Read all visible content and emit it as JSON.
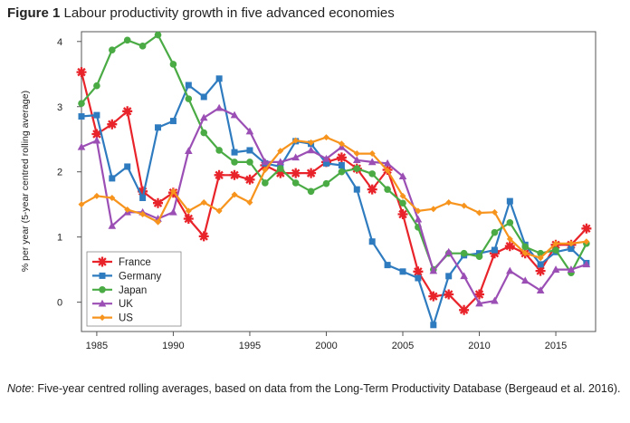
{
  "figure": {
    "label": "Figure 1",
    "title": "Labour productivity growth in five advanced economies",
    "note_label": "Note",
    "note_text": ": Five-year centred rolling averages, based on data from the Long-Term Productivity Database (Bergeaud et al. 2016)."
  },
  "chart_data": {
    "type": "line",
    "title": "",
    "xlabel": "",
    "ylabel": "% per year (5-year centred rolling average)",
    "xlim": [
      1984,
      2017.6
    ],
    "ylim": [
      -0.45,
      4.15
    ],
    "xticks": [
      1985,
      1990,
      1995,
      2000,
      2005,
      2010,
      2015
    ],
    "yticks": [
      0,
      1,
      2,
      3,
      4
    ],
    "grid": false,
    "legend_position": "bottom-left",
    "x": [
      1984,
      1985,
      1986,
      1987,
      1988,
      1989,
      1990,
      1991,
      1992,
      1993,
      1994,
      1995,
      1996,
      1997,
      1998,
      1999,
      2000,
      2001,
      2002,
      2003,
      2004,
      2005,
      2006,
      2007,
      2008,
      2009,
      2010,
      2011,
      2012,
      2013,
      2014,
      2015,
      2016,
      2017
    ],
    "series": [
      {
        "name": "France",
        "color": "#e8232a",
        "marker": "asterisk",
        "values": [
          3.53,
          2.58,
          2.73,
          2.93,
          1.7,
          1.52,
          1.68,
          1.28,
          1.01,
          1.95,
          1.95,
          1.88,
          2.1,
          1.98,
          1.98,
          1.98,
          2.15,
          2.22,
          2.05,
          1.73,
          2.03,
          1.35,
          0.47,
          0.09,
          0.12,
          -0.12,
          0.12,
          0.75,
          0.86,
          0.75,
          0.48,
          0.88,
          0.88,
          1.13
        ]
      },
      {
        "name": "Germany",
        "color": "#2f7bbf",
        "marker": "square",
        "values": [
          2.85,
          2.87,
          1.9,
          2.08,
          1.6,
          2.68,
          2.78,
          3.33,
          3.15,
          3.43,
          2.3,
          2.33,
          2.13,
          2.08,
          2.47,
          2.43,
          2.13,
          2.1,
          1.73,
          0.93,
          0.57,
          0.47,
          0.37,
          -0.35,
          0.4,
          0.72,
          0.75,
          0.8,
          1.55,
          0.88,
          0.58,
          0.77,
          0.82,
          0.6
        ]
      },
      {
        "name": "Japan",
        "color": "#4aab45",
        "marker": "circle",
        "values": [
          3.05,
          3.32,
          3.87,
          4.02,
          3.93,
          4.1,
          3.65,
          3.12,
          2.6,
          2.33,
          2.15,
          2.15,
          1.83,
          2.05,
          1.83,
          1.7,
          1.82,
          2.0,
          2.05,
          1.97,
          1.73,
          1.52,
          1.15,
          0.5,
          0.75,
          0.75,
          0.7,
          1.07,
          1.22,
          0.85,
          0.75,
          0.8,
          0.45,
          0.9
        ]
      },
      {
        "name": "UK",
        "color": "#9b4fb5",
        "marker": "triangle",
        "values": [
          2.38,
          2.48,
          1.17,
          1.38,
          1.38,
          1.28,
          1.38,
          2.32,
          2.83,
          2.98,
          2.87,
          2.62,
          2.15,
          2.15,
          2.22,
          2.33,
          2.2,
          2.38,
          2.18,
          2.15,
          2.13,
          1.93,
          1.27,
          0.48,
          0.77,
          0.4,
          -0.02,
          0.02,
          0.48,
          0.33,
          0.18,
          0.5,
          0.5,
          0.58
        ]
      },
      {
        "name": "US",
        "color": "#f7941d",
        "marker": "diamond",
        "values": [
          1.5,
          1.63,
          1.6,
          1.42,
          1.35,
          1.23,
          1.7,
          1.4,
          1.53,
          1.4,
          1.65,
          1.53,
          2.03,
          2.32,
          2.48,
          2.45,
          2.53,
          2.43,
          2.28,
          2.28,
          2.02,
          1.63,
          1.4,
          1.43,
          1.53,
          1.48,
          1.37,
          1.38,
          0.97,
          0.75,
          0.68,
          0.9,
          0.9,
          0.93
        ]
      }
    ]
  }
}
